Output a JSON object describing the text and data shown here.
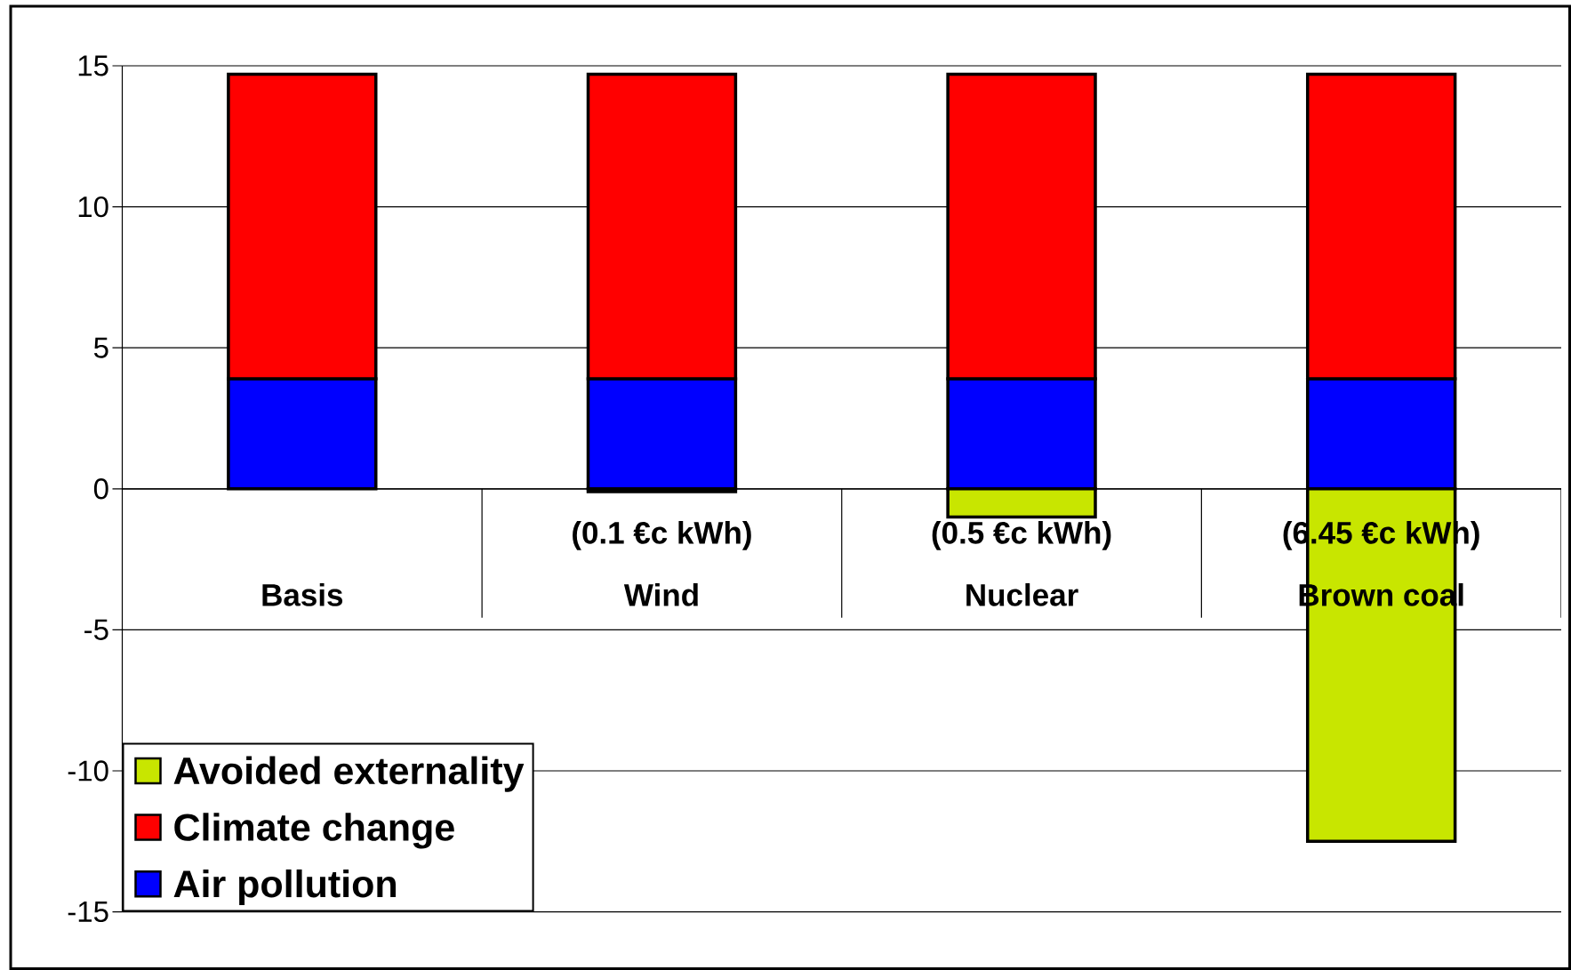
{
  "chart_data": {
    "type": "bar",
    "stacked": true,
    "categories": [
      "Basis",
      "Wind",
      "Nuclear",
      "Brown coal"
    ],
    "series": [
      {
        "name": "Air pollution",
        "color": "#0000ff",
        "values": [
          3.9,
          3.9,
          3.9,
          3.9
        ]
      },
      {
        "name": "Climate change",
        "color": "#ff0000",
        "values": [
          10.8,
          10.8,
          10.8,
          10.8
        ]
      },
      {
        "name": "Avoided externality",
        "color": "#c8e600",
        "values": [
          0,
          -0.1,
          -1.0,
          -12.5
        ]
      }
    ],
    "ylim": [
      -15,
      15
    ],
    "yticks": [
      -15,
      -10,
      -5,
      0,
      5,
      10,
      15
    ],
    "grid": "y",
    "legend": "bottom left",
    "annotations": [
      "(0.1 €c kWh)",
      "(0.5 €c kWh)",
      "(6.45 €c kWh)"
    ]
  }
}
